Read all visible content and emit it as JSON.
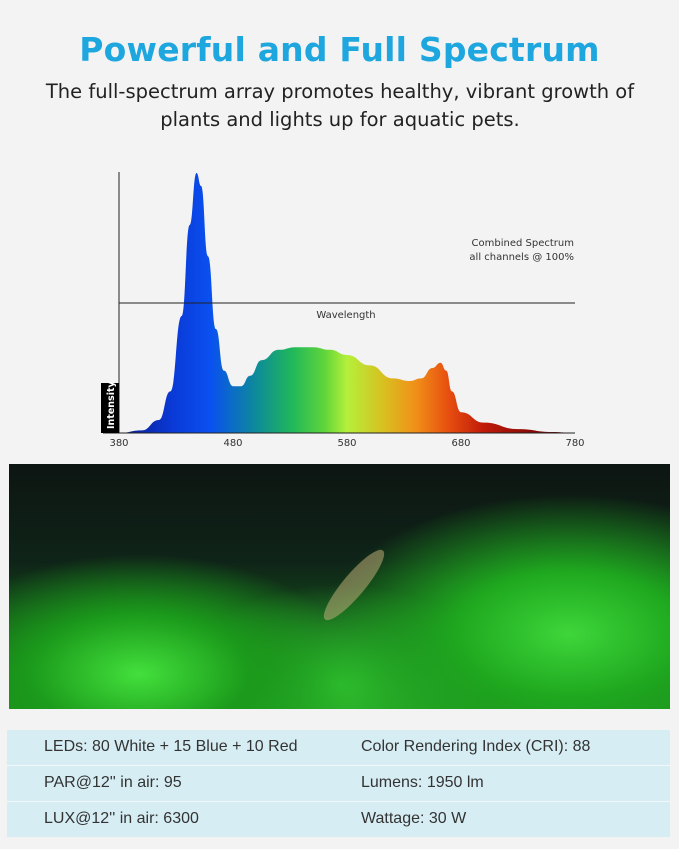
{
  "header": {
    "title": "Powerful and Full Spectrum",
    "subtitle": "The full-spectrum array promotes healthy, vibrant growth of plants and lights up for aquatic pets."
  },
  "chart_data": {
    "type": "area",
    "title": "",
    "annotation_line1": "Combined Spectrum",
    "annotation_line2": "all channels @ 100%",
    "xlabel": "Wavelength",
    "ylabel": "Intensity",
    "xlim": [
      380,
      780
    ],
    "ylim": [
      0,
      1
    ],
    "x_ticks": [
      "380",
      "480",
      "580",
      "680",
      "780"
    ],
    "grid": false,
    "legend": "none",
    "fill": "spectral color gradient (blue to red)",
    "x": [
      380,
      400,
      415,
      425,
      435,
      442,
      448,
      452,
      458,
      465,
      472,
      480,
      487,
      495,
      505,
      520,
      535,
      550,
      565,
      580,
      600,
      620,
      635,
      645,
      655,
      662,
      667,
      672,
      680,
      700,
      730,
      760,
      780
    ],
    "y": [
      0,
      0.01,
      0.05,
      0.16,
      0.45,
      0.8,
      1.0,
      0.95,
      0.68,
      0.4,
      0.24,
      0.18,
      0.18,
      0.22,
      0.28,
      0.32,
      0.33,
      0.33,
      0.32,
      0.3,
      0.26,
      0.21,
      0.2,
      0.21,
      0.25,
      0.27,
      0.24,
      0.16,
      0.08,
      0.04,
      0.015,
      0.004,
      0
    ]
  },
  "specs": {
    "rows": [
      {
        "left": "LEDs: 80 White + 15 Blue + 10 Red",
        "right": "Color Rendering Index (CRI): 88"
      },
      {
        "left": "PAR@12'' in air: 95",
        "right": "Lumens: 1950 lm"
      },
      {
        "left": "LUX@12'' in air: 6300",
        "right": "Wattage: 30 W"
      }
    ]
  },
  "colors": {
    "title": "#1ea6df",
    "specs_bg": "#d6edf4"
  }
}
